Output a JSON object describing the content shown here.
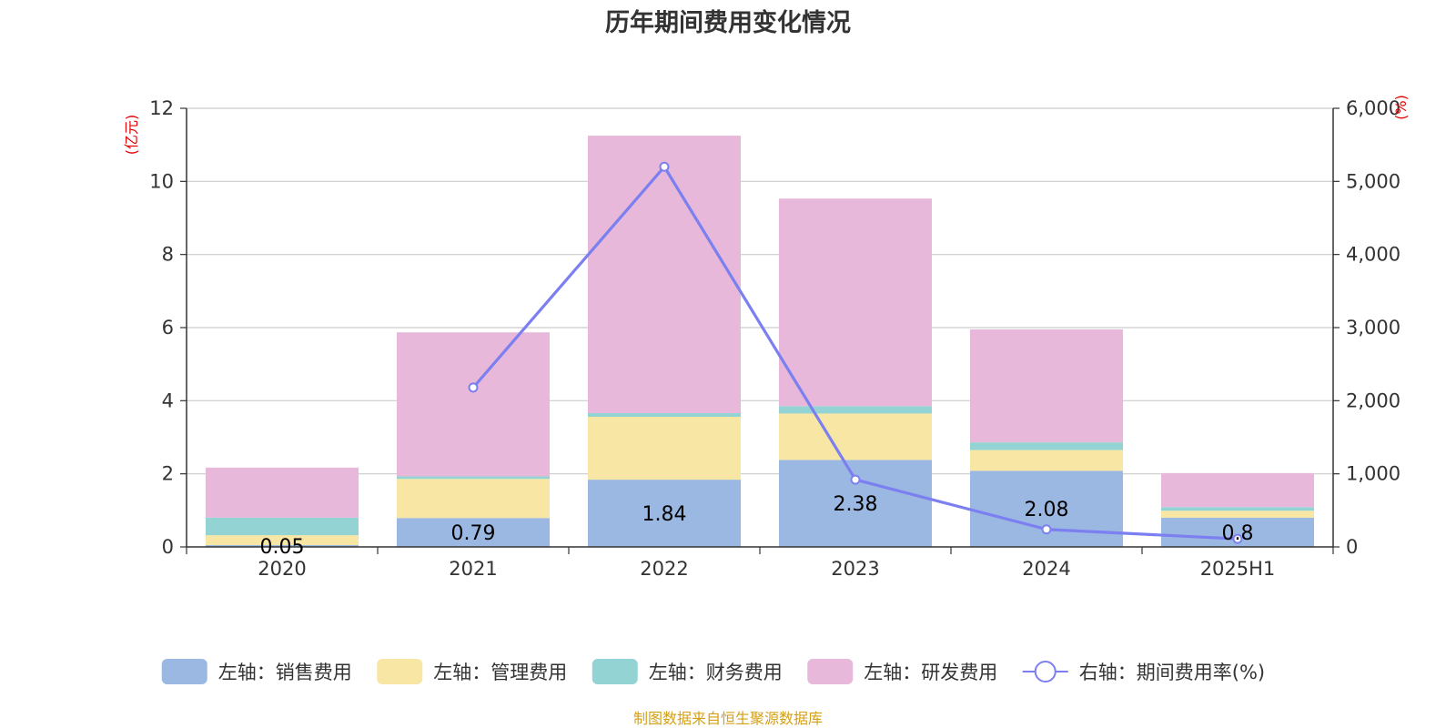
{
  "chart_data": {
    "type": "bar",
    "title": "历年期间费用变化情况",
    "categories": [
      "2020",
      "2021",
      "2022",
      "2023",
      "2024",
      "2025H1"
    ],
    "left_axis": {
      "unit": "(亿元)",
      "ylim": [
        0,
        12
      ],
      "ticks": [
        "0",
        "2",
        "4",
        "6",
        "8",
        "10",
        "12"
      ]
    },
    "right_axis": {
      "unit": "(%)",
      "ylim": [
        0,
        6000
      ],
      "ticks": [
        "0",
        "1,000",
        "2,000",
        "3,000",
        "4,000",
        "5,000",
        "6,000"
      ]
    },
    "series": [
      {
        "name": "左轴：销售费用",
        "type": "bar",
        "color": "#9bb8e3",
        "values": [
          0.05,
          0.79,
          1.84,
          2.38,
          2.08,
          0.8
        ],
        "labels": [
          "0.05",
          "0.79",
          "1.84",
          "2.38",
          "2.08",
          "0.8"
        ]
      },
      {
        "name": "左轴：管理费用",
        "type": "bar",
        "color": "#f7e6a4",
        "values": [
          0.27,
          1.07,
          1.72,
          1.27,
          0.57,
          0.19
        ]
      },
      {
        "name": "左轴：财务费用",
        "type": "bar",
        "color": "#94d3d4",
        "values": [
          0.48,
          0.07,
          0.1,
          0.2,
          0.21,
          0.1
        ]
      },
      {
        "name": "左轴：研发费用",
        "type": "bar",
        "color": "#e7b8d9",
        "values": [
          1.37,
          3.94,
          7.59,
          5.68,
          3.09,
          0.93
        ]
      },
      {
        "name": "右轴：期间费用率(%)",
        "type": "line",
        "color": "#7b7ff0",
        "values": [
          null,
          2180,
          5200,
          920,
          240,
          110
        ]
      }
    ],
    "grid": true,
    "legend_position": "bottom"
  },
  "source_note": "制图数据来自恒生聚源数据库"
}
